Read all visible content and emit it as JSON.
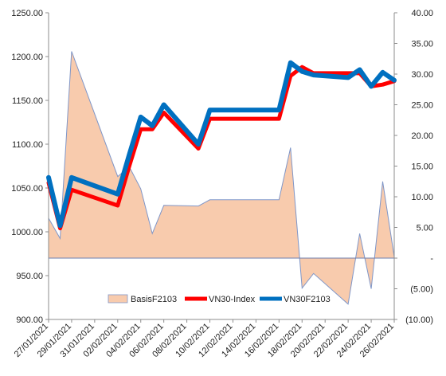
{
  "chart_data": {
    "type": "line",
    "title": "",
    "x": [
      "27/01/2021",
      "28/01/2021",
      "29/01/2021",
      "01/02/2021",
      "02/02/2021",
      "03/02/2021",
      "04/02/2021",
      "05/02/2021",
      "08/02/2021",
      "09/02/2021",
      "10/02/2021",
      "17/02/2021",
      "18/02/2021",
      "19/02/2021",
      "22/02/2021",
      "23/02/2021",
      "24/02/2021",
      "25/02/2021",
      "26/02/2021"
    ],
    "x_tick_labels": [
      "27/01/2021",
      "29/01/2021",
      "31/01/2021",
      "02/02/2021",
      "04/02/2021",
      "06/02/2021",
      "08/02/2021",
      "10/02/2021",
      "12/02/2021",
      "14/02/2021",
      "16/02/2021",
      "18/02/2021",
      "20/02/2021",
      "22/02/2021",
      "24/02/2021",
      "26/02/2021"
    ],
    "y_left": {
      "ticks": [
        "900.00",
        "950.00",
        "1000.00",
        "1050.00",
        "1100.00",
        "1150.00",
        "1200.00",
        "1250.00"
      ],
      "ylim": [
        900,
        1250
      ]
    },
    "y_right": {
      "ticks": [
        "(10.00)",
        "(5.00)",
        "-",
        "5.00",
        "10.00",
        "15.00",
        "20.00",
        "25.00",
        "30.00",
        "35.00",
        "40.00"
      ],
      "ylim": [
        -10,
        40
      ]
    },
    "series": [
      {
        "name": "BasisF2103",
        "type": "area",
        "axis": "right",
        "color": "#f8cbad",
        "edge_color": "#7f96c8",
        "points": [
          [
            "27/01/2021",
            6.5
          ],
          [
            "28/01/2021",
            3.2
          ],
          [
            "29/01/2021",
            33.7
          ],
          [
            "02/02/2021",
            13.3
          ],
          [
            "03/02/2021",
            14.9
          ],
          [
            "04/02/2021",
            11.3
          ],
          [
            "05/02/2021",
            4.0
          ],
          [
            "06/02/2021",
            8.6
          ],
          [
            "09/02/2021",
            8.5
          ],
          [
            "10/02/2021",
            9.5
          ],
          [
            "16/02/2021",
            9.5
          ],
          [
            "17/02/2021",
            18.0
          ],
          [
            "18/02/2021",
            -4.9
          ],
          [
            "19/02/2021",
            -2.5
          ],
          [
            "22/02/2021",
            -7.5
          ],
          [
            "23/02/2021",
            4.0
          ],
          [
            "24/02/2021",
            -5.0
          ],
          [
            "25/02/2021",
            12.5
          ],
          [
            "26/02/2021",
            0.2
          ]
        ]
      },
      {
        "name": "VN30-Index",
        "type": "line",
        "axis": "left",
        "color": "#ff0000",
        "points": [
          [
            "27/01/2021",
            1056
          ],
          [
            "28/01/2021",
            1004
          ],
          [
            "29/01/2021",
            1048
          ],
          [
            "02/02/2021",
            1030
          ],
          [
            "03/02/2021",
            1075
          ],
          [
            "04/02/2021",
            1117
          ],
          [
            "05/02/2021",
            1117
          ],
          [
            "06/02/2021",
            1136
          ],
          [
            "09/02/2021",
            1095
          ],
          [
            "10/02/2021",
            1129
          ],
          [
            "16/02/2021",
            1129
          ],
          [
            "17/02/2021",
            1178
          ],
          [
            "18/02/2021",
            1188
          ],
          [
            "19/02/2021",
            1181
          ],
          [
            "22/02/2021",
            1181
          ],
          [
            "23/02/2021",
            1181
          ],
          [
            "24/02/2021",
            1166
          ],
          [
            "25/02/2021",
            1168
          ],
          [
            "26/02/2021",
            1172
          ]
        ]
      },
      {
        "name": "VN30F2103",
        "type": "line",
        "axis": "left",
        "color": "#0070c0",
        "points": [
          [
            "27/01/2021",
            1062
          ],
          [
            "28/01/2021",
            1007
          ],
          [
            "29/01/2021",
            1062
          ],
          [
            "02/02/2021",
            1043
          ],
          [
            "03/02/2021",
            1088
          ],
          [
            "04/02/2021",
            1131
          ],
          [
            "05/02/2021",
            1121
          ],
          [
            "06/02/2021",
            1145
          ],
          [
            "09/02/2021",
            1100
          ],
          [
            "10/02/2021",
            1139
          ],
          [
            "16/02/2021",
            1139
          ],
          [
            "17/02/2021",
            1193
          ],
          [
            "18/02/2021",
            1183
          ],
          [
            "19/02/2021",
            1179
          ],
          [
            "22/02/2021",
            1176
          ],
          [
            "23/02/2021",
            1185
          ],
          [
            "24/02/2021",
            1166
          ],
          [
            "25/02/2021",
            1182
          ],
          [
            "26/02/2021",
            1173
          ]
        ]
      }
    ],
    "legend": [
      "BasisF2103",
      "VN30-Index",
      "VN30F2103"
    ],
    "legend_position": "bottom-inside",
    "grid": false
  }
}
